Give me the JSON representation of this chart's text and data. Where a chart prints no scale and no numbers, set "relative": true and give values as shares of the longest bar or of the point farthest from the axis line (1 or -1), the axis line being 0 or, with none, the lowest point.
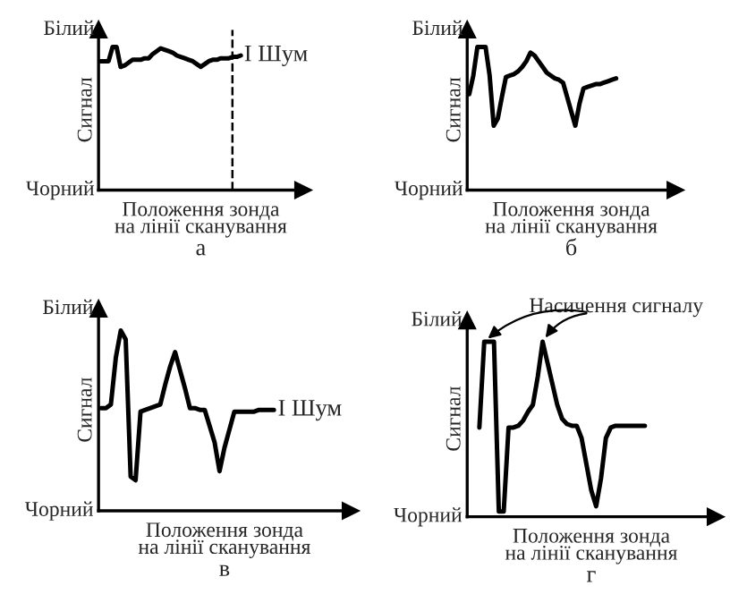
{
  "chart_data": [
    {
      "type": "line",
      "relative": true,
      "title": "а",
      "xlabel": "Положення зонда\nна лінії сканування",
      "ylabel": "Сигнал",
      "legend": false,
      "marker": "none",
      "line_style": "solid",
      "categories": [
        null,
        null,
        null,
        null,
        null,
        null,
        null,
        null,
        null,
        null,
        null,
        null,
        null,
        null,
        null,
        null,
        null,
        null,
        null,
        null,
        null,
        null,
        null,
        null,
        null,
        null,
        null,
        null,
        null,
        null,
        null,
        null,
        null,
        null,
        null,
        null,
        null,
        null,
        null,
        null,
        null,
        null,
        null,
        null,
        null,
        null,
        null,
        null,
        null,
        null,
        null
      ],
      "series": [
        {
          "color": "#000000",
          "values": [
            0.9,
            0.9,
            0.9,
            1,
            1,
            0.86,
            0.87,
            0.89,
            0.91,
            0.91,
            0.91,
            0.92,
            0.92,
            0.95,
            0.97,
            0.99,
            0.98,
            0.97,
            0.96,
            0.94,
            0.93,
            0.92,
            0.91,
            0.9,
            0.88,
            0.86,
            0.88,
            0.9,
            0.91,
            0.91,
            0.92,
            0.92,
            0.92,
            0.93,
            0.93,
            0.94,
            null,
            null,
            null,
            null,
            null,
            null,
            null,
            null,
            null,
            null,
            null,
            null,
            null,
            null,
            null
          ]
        }
      ],
      "annotations": [
        "Білий",
        "Чорний",
        "I Шум"
      ]
    },
    {
      "type": "line",
      "relative": true,
      "title": "б",
      "xlabel": "Положення зонда\nна лінії сканування",
      "ylabel": "Сигнал",
      "legend": false,
      "marker": "none",
      "line_style": "solid",
      "categories": [
        null,
        null,
        null,
        null,
        null,
        null,
        null,
        null,
        null,
        null,
        null,
        null,
        null,
        null,
        null,
        null,
        null,
        null,
        null,
        null,
        null,
        null,
        null,
        null,
        null,
        null,
        null,
        null,
        null,
        null,
        null,
        null,
        null,
        null,
        null,
        null,
        null,
        null,
        null,
        null,
        null,
        null,
        null,
        null,
        null,
        null,
        null,
        null,
        null,
        null,
        null
      ],
      "series": [
        {
          "color": "#000000",
          "values": [
            0.67,
            0.8,
            1,
            1,
            1,
            0.8,
            0.45,
            0.5,
            0.65,
            0.79,
            0.8,
            0.81,
            0.83,
            0.86,
            0.9,
            0.96,
            0.94,
            0.9,
            0.86,
            0.82,
            0.8,
            0.78,
            0.77,
            0.75,
            0.65,
            0.55,
            0.45,
            0.6,
            0.71,
            0.72,
            0.73,
            0.74,
            0.74,
            0.75,
            0.76,
            0.77,
            0.78,
            null,
            null,
            null,
            null,
            null,
            null,
            null,
            null,
            null,
            null,
            null,
            null,
            null,
            null
          ]
        }
      ],
      "annotations": [
        "Білий",
        "Чорний"
      ]
    },
    {
      "type": "line",
      "relative": true,
      "title": "в",
      "xlabel": "Положення зонда\nна лінії сканування",
      "ylabel": "Сигнал",
      "legend": false,
      "marker": "none",
      "line_style": "solid",
      "categories": [
        null,
        null,
        null,
        null,
        null,
        null,
        null,
        null,
        null,
        null,
        null,
        null,
        null,
        null,
        null,
        null,
        null,
        null,
        null,
        null,
        null,
        null,
        null,
        null,
        null,
        null,
        null,
        null,
        null,
        null,
        null,
        null,
        null,
        null,
        null,
        null,
        null,
        null,
        null,
        null,
        null,
        null,
        null,
        null,
        null,
        null,
        null,
        null,
        null,
        null,
        null
      ],
      "series": [
        {
          "color": "#000000",
          "values": [
            0.57,
            0.57,
            0.59,
            0.85,
            1,
            0.95,
            0.19,
            0.17,
            0.55,
            0.56,
            0.57,
            0.58,
            0.59,
            0.7,
            0.8,
            0.88,
            0.78,
            0.68,
            0.57,
            0.57,
            0.56,
            0.56,
            0.47,
            0.38,
            0.22,
            0.35,
            0.45,
            0.55,
            0.55,
            0.55,
            0.55,
            0.55,
            0.56,
            0.56,
            0.56,
            0.56,
            null,
            null,
            null,
            null,
            null,
            null,
            null,
            null,
            null,
            null,
            null,
            null,
            null,
            null,
            null
          ]
        }
      ],
      "annotations": [
        "Білий",
        "Чорний",
        "I Шум"
      ]
    },
    {
      "type": "line",
      "relative": true,
      "title": "г",
      "xlabel": "Положення зонда\nна лінії сканування",
      "ylabel": "Сигнал",
      "legend": false,
      "marker": "none",
      "line_style": "solid",
      "categories": [
        null,
        null,
        null,
        null,
        null,
        null,
        null,
        null,
        null,
        null,
        null,
        null,
        null,
        null,
        null,
        null,
        null,
        null,
        null,
        null,
        null,
        null,
        null,
        null,
        null,
        null,
        null,
        null,
        null,
        null,
        null,
        null,
        null,
        null,
        null,
        null,
        null,
        null,
        null,
        null,
        null,
        null,
        null,
        null,
        null,
        null,
        null,
        null,
        null,
        null,
        null
      ],
      "series": [
        {
          "color": "#000000",
          "values": [
            null,
            null,
            0.51,
            1,
            1,
            1,
            0.03,
            0.03,
            0.51,
            0.51,
            0.52,
            0.55,
            0.6,
            0.64,
            0.8,
            1,
            0.88,
            0.76,
            0.64,
            0.56,
            0.53,
            0.52,
            0.52,
            0.45,
            0.3,
            0.15,
            0.06,
            0.22,
            0.45,
            0.51,
            0.52,
            0.52,
            0.52,
            0.52,
            0.52,
            0.52,
            0.52,
            null,
            null,
            null,
            null,
            null,
            null,
            null,
            null,
            null,
            null,
            null,
            null,
            null,
            null
          ]
        }
      ],
      "annotations": [
        "Білий",
        "Чорний",
        "Насичення сигналу"
      ]
    }
  ]
}
